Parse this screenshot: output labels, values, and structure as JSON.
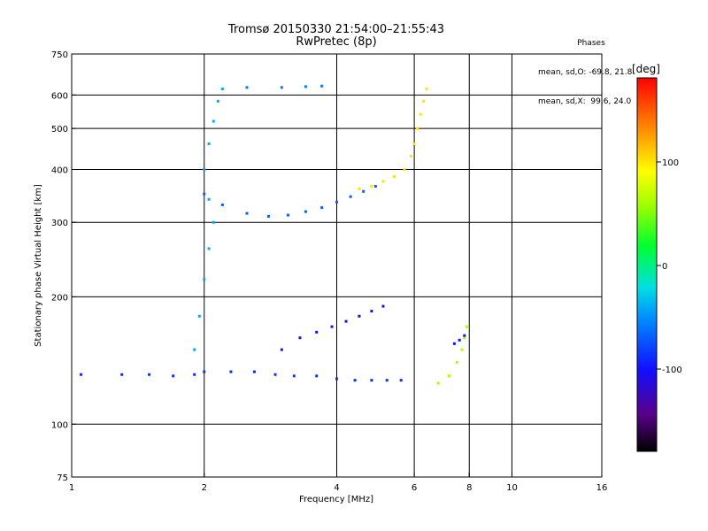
{
  "header": {
    "title_line1": "Tromsø 20150330 21:54:00–21:55:43",
    "title_line2": "RwPretec (8p)"
  },
  "stats": {
    "heading": "Phases",
    "o_line": "mean, sd,O: -69.8, 21.8",
    "x_line": "mean, sd,X:  99.6, 24.0"
  },
  "colorbar": {
    "unit": "[deg]",
    "tick_labels": [
      "100",
      "0",
      "-100"
    ],
    "range": [
      -180,
      180
    ]
  },
  "chart_data": {
    "type": "scatter",
    "xlabel": "Frequency [MHz]",
    "ylabel": "Stationary phase Virtual Height [km]",
    "x_scale": "log",
    "y_scale": "log",
    "xlim": [
      1,
      16
    ],
    "ylim": [
      75,
      750
    ],
    "x_ticks": [
      1,
      2,
      4,
      6,
      8,
      10,
      16
    ],
    "x_tick_labels": [
      "1",
      "2",
      "4",
      "6",
      "8",
      "10",
      "16"
    ],
    "y_ticks": [
      75,
      100,
      200,
      300,
      400,
      500,
      600,
      750
    ],
    "y_tick_labels": [
      "75",
      "100",
      "200",
      "300",
      "400",
      "500",
      "600",
      "750"
    ],
    "grid_x": [
      2,
      4,
      6,
      8,
      10
    ],
    "grid_y": [
      100,
      200,
      300,
      400,
      500,
      600
    ],
    "colorscale": "rainbow",
    "color_label": "Phase [deg]",
    "series": [
      {
        "traces": [
          {
            "phase": -90,
            "pts": [
              [
                1.05,
                131
              ],
              [
                1.3,
                131
              ],
              [
                1.5,
                131
              ],
              [
                1.7,
                130
              ],
              [
                1.9,
                131
              ],
              [
                2.0,
                133
              ],
              [
                2.3,
                133
              ],
              [
                2.6,
                133
              ],
              [
                2.9,
                131
              ],
              [
                3.2,
                130
              ],
              [
                3.6,
                130
              ],
              [
                4.0,
                128
              ],
              [
                4.4,
                127
              ],
              [
                4.8,
                127
              ],
              [
                5.2,
                127
              ],
              [
                5.6,
                127
              ]
            ]
          },
          {
            "phase": -40,
            "pts": [
              [
                1.9,
                150
              ],
              [
                1.95,
                180
              ],
              [
                2.0,
                220
              ],
              [
                2.05,
                260
              ],
              [
                2.1,
                300
              ],
              [
                2.05,
                340
              ],
              [
                2.0,
                400
              ],
              [
                2.05,
                460
              ],
              [
                2.1,
                520
              ],
              [
                2.15,
                580
              ],
              [
                2.2,
                620
              ]
            ]
          },
          {
            "phase": -70,
            "pts": [
              [
                2.0,
                350
              ],
              [
                2.2,
                330
              ],
              [
                2.5,
                315
              ],
              [
                2.8,
                310
              ],
              [
                3.1,
                312
              ],
              [
                3.4,
                318
              ],
              [
                3.7,
                325
              ],
              [
                4.0,
                335
              ],
              [
                4.3,
                345
              ],
              [
                4.6,
                355
              ],
              [
                4.9,
                365
              ]
            ]
          },
          {
            "phase": 100,
            "pts": [
              [
                4.5,
                360
              ],
              [
                4.8,
                365
              ],
              [
                5.1,
                375
              ],
              [
                5.4,
                385
              ],
              [
                5.7,
                400
              ],
              [
                5.9,
                430
              ],
              [
                6.0,
                460
              ],
              [
                6.1,
                500
              ],
              [
                6.2,
                540
              ],
              [
                6.3,
                580
              ],
              [
                6.4,
                620
              ]
            ]
          },
          {
            "phase": -60,
            "pts": [
              [
                2.5,
                625
              ],
              [
                3.0,
                625
              ],
              [
                3.4,
                628
              ],
              [
                3.7,
                630
              ]
            ]
          },
          {
            "phase": -110,
            "pts": [
              [
                3.0,
                150
              ],
              [
                3.3,
                160
              ],
              [
                3.6,
                165
              ],
              [
                3.9,
                170
              ],
              [
                4.2,
                175
              ],
              [
                4.5,
                180
              ],
              [
                4.8,
                185
              ],
              [
                5.1,
                190
              ]
            ]
          },
          {
            "phase": 60,
            "pts": [
              [
                6.8,
                125
              ],
              [
                7.2,
                130
              ],
              [
                7.5,
                140
              ],
              [
                7.7,
                150
              ],
              [
                7.8,
                160
              ],
              [
                7.9,
                170
              ]
            ]
          },
          {
            "phase": -100,
            "pts": [
              [
                7.4,
                155
              ],
              [
                7.6,
                158
              ],
              [
                7.8,
                162
              ]
            ]
          }
        ]
      }
    ]
  }
}
